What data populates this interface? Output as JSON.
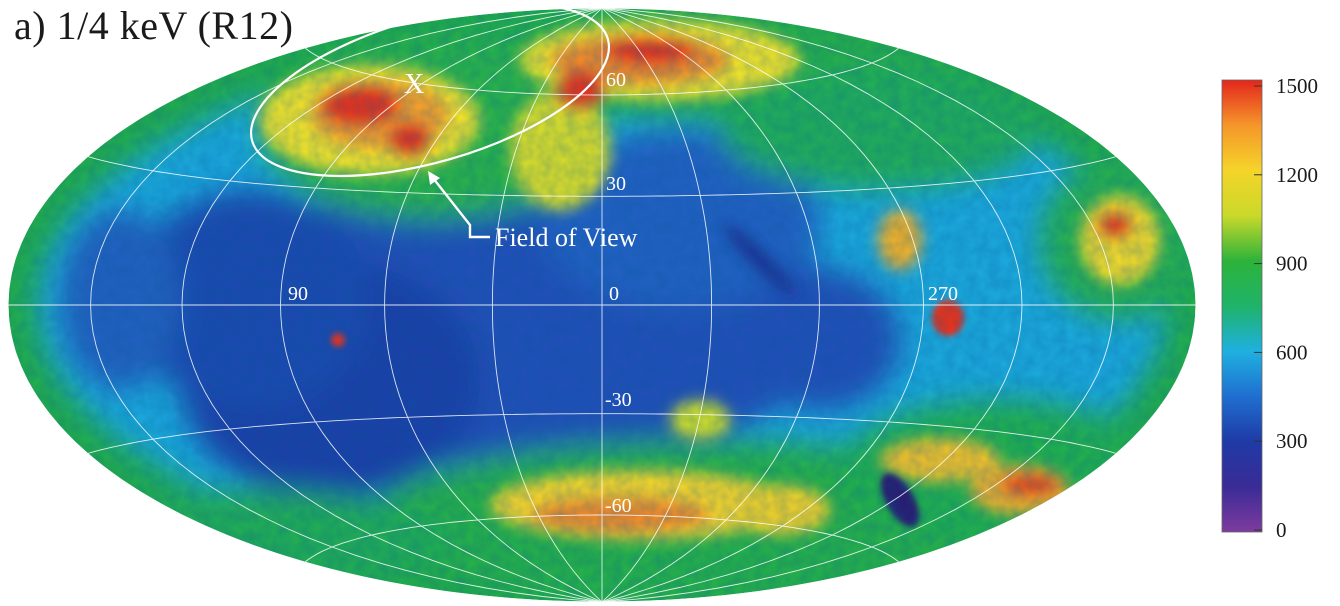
{
  "panel_title": "a) 1/4 keV (R12)",
  "map": {
    "longitude_labels": [
      "90",
      "0",
      "270"
    ],
    "latitude_labels": [
      "60",
      "30",
      "-30",
      "-60"
    ],
    "annotation_label": "Field of View",
    "marker_label": "X",
    "graticule_color": "#ffffff",
    "palette": [
      "#7b2a9c",
      "#1f2a9e",
      "#1a55c7",
      "#1ba3e0",
      "#1fb35a",
      "#22a838",
      "#f3e52a",
      "#f5a02a",
      "#e8321e"
    ]
  },
  "colorbar": {
    "tick_labels": [
      "1500",
      "1200",
      "900",
      "600",
      "300",
      "0"
    ],
    "tick_values": [
      1500,
      1200,
      900,
      600,
      300,
      0
    ],
    "range": [
      0,
      1500
    ],
    "stops": [
      {
        "value": 0,
        "color": "#7e3b9e"
      },
      {
        "value": 150,
        "color": "#3a2b96"
      },
      {
        "value": 300,
        "color": "#1f3aa6"
      },
      {
        "value": 450,
        "color": "#1f6fd0"
      },
      {
        "value": 600,
        "color": "#1fb0e0"
      },
      {
        "value": 750,
        "color": "#1fb36a"
      },
      {
        "value": 900,
        "color": "#2db33a"
      },
      {
        "value": 1050,
        "color": "#c9d92a"
      },
      {
        "value": 1200,
        "color": "#f5d42a"
      },
      {
        "value": 1350,
        "color": "#f5962a"
      },
      {
        "value": 1500,
        "color": "#e3261c"
      }
    ]
  }
}
